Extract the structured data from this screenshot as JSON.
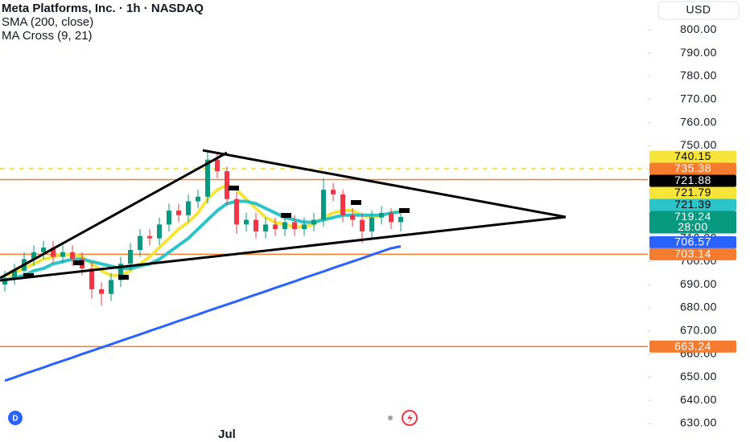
{
  "header": {
    "title": "Meta Platforms, Inc. · 1h · NASDAQ",
    "indicators": [
      "SMA (200, close)",
      "MA Cross (9, 21)"
    ],
    "currency": "USD"
  },
  "chart_data": {
    "type": "candlestick",
    "categories": [
      null,
      null,
      null,
      null,
      null,
      null,
      null,
      null,
      null,
      null,
      null,
      null,
      null,
      null,
      null,
      null,
      null,
      null,
      null,
      null,
      null,
      null,
      null,
      "Jul",
      null,
      null,
      null,
      null,
      null,
      null,
      null,
      null,
      null,
      null,
      null,
      null,
      null,
      null,
      null,
      null,
      null,
      null
    ],
    "candles": {
      "open": [
        690,
        693,
        696,
        701,
        704,
        706,
        702,
        704,
        701,
        697,
        688,
        686,
        692,
        699,
        705,
        711,
        710,
        716,
        722,
        720,
        726,
        728,
        744,
        739,
        727,
        716,
        718,
        713,
        716,
        714,
        717,
        714,
        716,
        718,
        731,
        729,
        720,
        718,
        713,
        719,
        721,
        717
      ],
      "high": [
        696,
        699,
        704,
        707,
        709,
        709,
        707,
        707,
        704,
        700,
        691,
        695,
        702,
        708,
        714,
        714,
        719,
        725,
        725,
        729,
        731,
        748,
        747,
        741,
        730,
        721,
        721,
        719,
        719,
        720,
        720,
        719,
        721,
        736,
        734,
        731,
        723,
        721,
        722,
        724,
        723,
        721
      ],
      "low": [
        687,
        690,
        693,
        698,
        701,
        699,
        699,
        698,
        694,
        684,
        681,
        683,
        689,
        696,
        702,
        707,
        707,
        713,
        717,
        717,
        723,
        725,
        736,
        724,
        712,
        713,
        710,
        710,
        711,
        711,
        711,
        711,
        713,
        715,
        726,
        717,
        715,
        708,
        710,
        716,
        714,
        713
      ],
      "close": [
        693,
        696,
        701,
        704,
        706,
        702,
        704,
        701,
        697,
        688,
        686,
        692,
        699,
        705,
        711,
        710,
        716,
        722,
        720,
        726,
        728,
        744,
        739,
        727,
        716,
        718,
        713,
        716,
        714,
        717,
        714,
        716,
        718,
        731,
        729,
        720,
        718,
        713,
        719,
        721,
        717,
        719.24
      ]
    },
    "up_color": "#089981",
    "down_color": "#f23645",
    "series": [
      {
        "color": "#2962ff",
        "width": 3,
        "values": [
          648.5,
          649.9,
          651.4,
          652.8,
          654.2,
          655.7,
          657.1,
          658.5,
          660.0,
          661.4,
          662.8,
          664.2,
          665.7,
          667.1,
          668.5,
          670.0,
          671.4,
          672.8,
          674.3,
          675.7,
          677.1,
          678.6,
          680.0,
          681.4,
          682.8,
          684.3,
          685.7,
          687.1,
          688.6,
          690.0,
          691.4,
          692.9,
          694.3,
          695.7,
          697.2,
          698.6,
          700.0,
          701.4,
          702.9,
          704.3,
          705.7,
          706.57
        ]
      },
      {
        "color": "#f7e43a",
        "width": 4,
        "values": [
          694,
          695,
          697,
          699,
          701,
          702,
          703,
          703,
          702,
          699,
          696,
          694,
          694,
          696,
          699,
          702,
          706,
          710,
          714,
          717,
          721,
          727,
          731,
          733,
          731,
          727,
          723,
          719,
          717,
          716,
          715,
          715,
          716,
          719,
          721,
          722,
          722,
          720,
          719,
          720,
          721,
          721.79
        ]
      },
      {
        "color": "#2bc4c9",
        "width": 4,
        "values": [
          692,
          693,
          694,
          696,
          697,
          699,
          700,
          701,
          701,
          700,
          699,
          698,
          697,
          697,
          698,
          699,
          701,
          704,
          707,
          710,
          714,
          718,
          722,
          725,
          726,
          726,
          725,
          723,
          721,
          719,
          718,
          717,
          717,
          718,
          719,
          720,
          720,
          720,
          720,
          720,
          721,
          721.39
        ]
      }
    ],
    "ylim": [
      622,
      813
    ],
    "yticks": [
      {
        "value": 630,
        "label": "630.00"
      },
      {
        "value": 640,
        "label": "640.00"
      },
      {
        "value": 650,
        "label": "650.00"
      },
      {
        "value": 660,
        "label": "660.00"
      },
      {
        "value": 670,
        "label": "670.00"
      },
      {
        "value": 680,
        "label": "680.00"
      },
      {
        "value": 690,
        "label": "690.00"
      },
      {
        "value": 700,
        "label": "700.00"
      },
      {
        "value": 710,
        "label": "710.00"
      },
      {
        "value": 720,
        "label": "720.00"
      },
      {
        "value": 730,
        "label": "730.00"
      },
      {
        "value": 740,
        "label": "740.00"
      },
      {
        "value": 750,
        "label": "750.00"
      },
      {
        "value": 760,
        "label": "760.00"
      },
      {
        "value": 770,
        "label": "770.00"
      },
      {
        "value": 780,
        "label": "780.00"
      },
      {
        "value": 790,
        "label": "790.00"
      },
      {
        "value": 800,
        "label": "800.00"
      }
    ],
    "price_labels": [
      {
        "value": 740.15,
        "color": "#f7e43a",
        "text_color": "#000000",
        "line_style": "dashed"
      },
      {
        "value": 735.38,
        "color": "#f57c2e",
        "text_color": "#ffffff",
        "line_style": "solid"
      },
      {
        "value": 721.88,
        "color": "#000000",
        "text_color": "#ffffff"
      },
      {
        "value": 721.79,
        "color": "#f7e43a",
        "text_color": "#000000"
      },
      {
        "value": 721.39,
        "color": "#2bc4c9",
        "text_color": "#000000"
      },
      {
        "value": 719.24,
        "color": "#089981",
        "text_color": "#ffffff",
        "countdown": "28:00"
      },
      {
        "value": 706.57,
        "color": "#2962ff",
        "text_color": "#ffffff"
      },
      {
        "value": 703.14,
        "color": "#f57c2e",
        "text_color": "#ffffff",
        "line_style": "solid"
      },
      {
        "value": 663.24,
        "color": "#f57c2e",
        "text_color": "#ffffff",
        "line_style": "solid"
      }
    ]
  }
}
